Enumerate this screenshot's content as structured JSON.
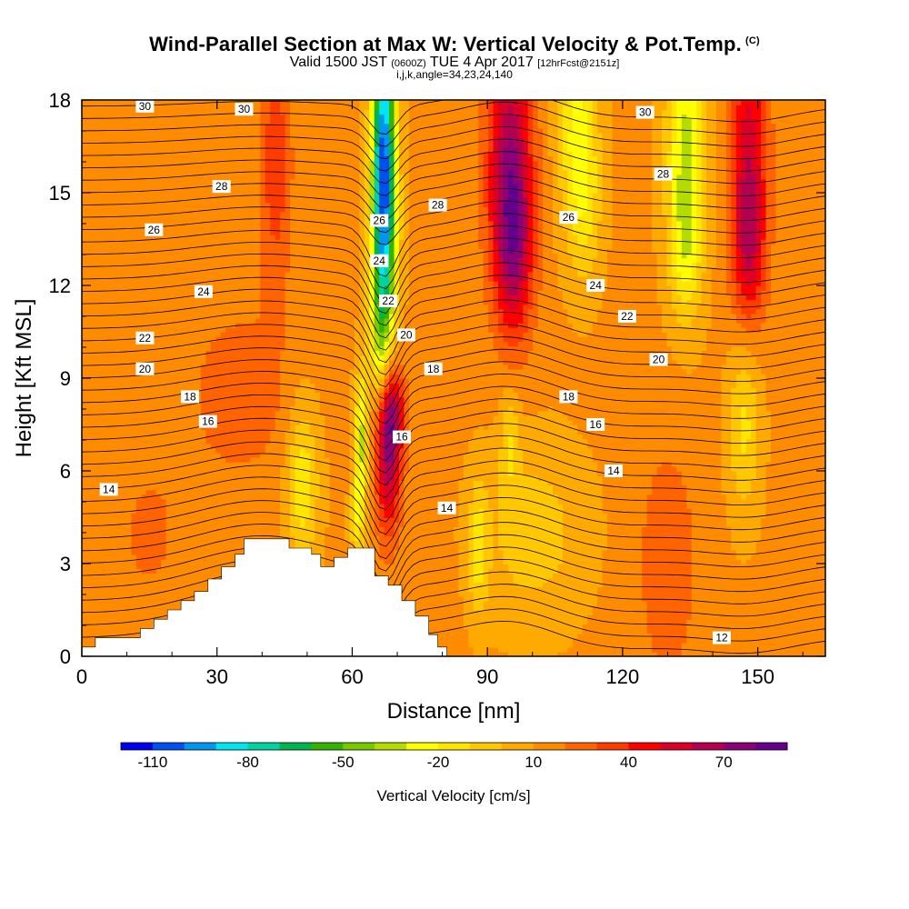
{
  "title": {
    "main": "Wind-Parallel Section at Max W: Vertical Velocity & Pot.Temp.",
    "copyright": "(C)",
    "valid_prefix": "Valid 1500 JST",
    "valid_utc": "(0600Z)",
    "valid_date": "TUE 4 Apr 2017",
    "forecast": "[12hrFcst@2151z]",
    "indices": "i,j,k,angle=34,23,24,140"
  },
  "chart_data": {
    "type": "heatmap",
    "xlabel": "Distance [nm]",
    "ylabel": "Height [Kft MSL]",
    "xlim": [
      0,
      165
    ],
    "ylim": [
      0,
      18
    ],
    "x_ticks": [
      0,
      30,
      60,
      90,
      120,
      150
    ],
    "y_ticks": [
      0,
      3,
      6,
      9,
      12,
      15,
      18
    ],
    "colorbar": {
      "label": "Vertical Velocity [cm/s]",
      "min": -120,
      "max": 80,
      "step": 10,
      "tick_labels": [
        "-110",
        "-80",
        "-50",
        "-20",
        "10",
        "40",
        "70"
      ],
      "tick_values": [
        -110,
        -80,
        -50,
        -20,
        10,
        40,
        70
      ],
      "colors": [
        "#0000f0",
        "#0050f0",
        "#0096f0",
        "#00e6f0",
        "#00d2a0",
        "#00b450",
        "#32b400",
        "#78c800",
        "#b4dc00",
        "#ffff00",
        "#ffe600",
        "#ffc800",
        "#ffaa00",
        "#ff8c00",
        "#ff6400",
        "#ff3c00",
        "#ff0000",
        "#dc0028",
        "#b40050",
        "#8c0078",
        "#64008c"
      ]
    },
    "vertical_velocity_features": [
      {
        "x": 67,
        "y": 16.5,
        "sx": 1.8,
        "sy": 3.2,
        "value": -105
      },
      {
        "x": 67,
        "y": 12.5,
        "sx": 2.0,
        "sy": 2.5,
        "value": -45
      },
      {
        "x": 66,
        "y": 10.0,
        "sx": 1.5,
        "sy": 1.5,
        "value": -20
      },
      {
        "x": 62,
        "y": 7.0,
        "sx": 1.0,
        "sy": 1.6,
        "value": -45
      },
      {
        "x": 61,
        "y": 4.5,
        "sx": 1.0,
        "sy": 1.0,
        "value": -25
      },
      {
        "x": 68,
        "y": 6.5,
        "sx": 2.0,
        "sy": 1.8,
        "value": 55
      },
      {
        "x": 69,
        "y": 8.0,
        "sx": 2.0,
        "sy": 1.0,
        "value": 35
      },
      {
        "x": 49,
        "y": 5.6,
        "sx": 2.5,
        "sy": 1.8,
        "value": -30
      },
      {
        "x": 95,
        "y": 16.0,
        "sx": 3.5,
        "sy": 3.0,
        "value": 55
      },
      {
        "x": 96,
        "y": 13.0,
        "sx": 3.0,
        "sy": 2.0,
        "value": 35
      },
      {
        "x": 110,
        "y": 17.0,
        "sx": 3.0,
        "sy": 2.5,
        "value": -35
      },
      {
        "x": 112,
        "y": 14.5,
        "sx": 2.5,
        "sy": 1.8,
        "value": -15
      },
      {
        "x": 134,
        "y": 16.5,
        "sx": 3.0,
        "sy": 3.0,
        "value": -45
      },
      {
        "x": 134,
        "y": 13.0,
        "sx": 2.5,
        "sy": 1.5,
        "value": -20
      },
      {
        "x": 148,
        "y": 16.0,
        "sx": 3.0,
        "sy": 3.0,
        "value": 45
      },
      {
        "x": 148,
        "y": 13.0,
        "sx": 2.5,
        "sy": 1.6,
        "value": 25
      },
      {
        "x": 147,
        "y": 7.5,
        "sx": 2.5,
        "sy": 2.0,
        "value": -25
      },
      {
        "x": 88,
        "y": 3.5,
        "sx": 1.5,
        "sy": 1.5,
        "value": -25
      },
      {
        "x": 95,
        "y": 7.0,
        "sx": 1.5,
        "sy": 1.2,
        "value": -20
      },
      {
        "x": 43,
        "y": 16.0,
        "sx": 2.5,
        "sy": 3.0,
        "value": 25
      },
      {
        "x": 35,
        "y": 8.5,
        "sx": 8.0,
        "sy": 2.0,
        "value": 15
      },
      {
        "x": 15,
        "y": 4.0,
        "sx": 6.0,
        "sy": 2.0,
        "value": 10
      },
      {
        "x": 130,
        "y": 3.0,
        "sx": 5.0,
        "sy": 3.0,
        "value": 15
      },
      {
        "x": 100,
        "y": 4.0,
        "sx": 8.0,
        "sy": 2.0,
        "value": -18
      }
    ],
    "theta_contour_labels": [
      {
        "x": 14,
        "y": 17.8,
        "text": "30"
      },
      {
        "x": 36,
        "y": 17.7,
        "text": "30"
      },
      {
        "x": 125,
        "y": 17.6,
        "text": "30"
      },
      {
        "x": 31,
        "y": 15.2,
        "text": "28"
      },
      {
        "x": 79,
        "y": 14.6,
        "text": "28"
      },
      {
        "x": 129,
        "y": 15.6,
        "text": "28"
      },
      {
        "x": 16,
        "y": 13.8,
        "text": "26"
      },
      {
        "x": 66,
        "y": 14.1,
        "text": "26"
      },
      {
        "x": 108,
        "y": 14.2,
        "text": "26"
      },
      {
        "x": 27,
        "y": 11.8,
        "text": "24"
      },
      {
        "x": 66,
        "y": 12.8,
        "text": "24"
      },
      {
        "x": 114,
        "y": 12.0,
        "text": "24"
      },
      {
        "x": 14,
        "y": 10.3,
        "text": "22"
      },
      {
        "x": 68,
        "y": 11.5,
        "text": "22"
      },
      {
        "x": 121,
        "y": 11.0,
        "text": "22"
      },
      {
        "x": 14,
        "y": 9.3,
        "text": "20"
      },
      {
        "x": 72,
        "y": 10.4,
        "text": "20"
      },
      {
        "x": 128,
        "y": 9.6,
        "text": "20"
      },
      {
        "x": 24,
        "y": 8.4,
        "text": "18"
      },
      {
        "x": 78,
        "y": 9.3,
        "text": "18"
      },
      {
        "x": 108,
        "y": 8.4,
        "text": "18"
      },
      {
        "x": 28,
        "y": 7.6,
        "text": "16"
      },
      {
        "x": 71,
        "y": 7.1,
        "text": "16"
      },
      {
        "x": 114,
        "y": 7.5,
        "text": "16"
      },
      {
        "x": 6,
        "y": 5.4,
        "text": "14"
      },
      {
        "x": 81,
        "y": 4.8,
        "text": "14"
      },
      {
        "x": 118,
        "y": 6.0,
        "text": "14"
      },
      {
        "x": 142,
        "y": 0.6,
        "text": "12"
      }
    ],
    "terrain_profile": [
      [
        0,
        0.3
      ],
      [
        3,
        0.3
      ],
      [
        3,
        0.6
      ],
      [
        13,
        0.6
      ],
      [
        13,
        0.9
      ],
      [
        16,
        0.9
      ],
      [
        16,
        1.2
      ],
      [
        19,
        1.2
      ],
      [
        19,
        1.5
      ],
      [
        22,
        1.5
      ],
      [
        22,
        1.8
      ],
      [
        25,
        1.8
      ],
      [
        25,
        2.1
      ],
      [
        28,
        2.1
      ],
      [
        28,
        2.5
      ],
      [
        31,
        2.5
      ],
      [
        31,
        2.9
      ],
      [
        34,
        2.9
      ],
      [
        34,
        3.3
      ],
      [
        36,
        3.3
      ],
      [
        36,
        3.8
      ],
      [
        46,
        3.8
      ],
      [
        46,
        3.5
      ],
      [
        51,
        3.5
      ],
      [
        51,
        3.3
      ],
      [
        53,
        3.3
      ],
      [
        53,
        2.9
      ],
      [
        56,
        2.9
      ],
      [
        56,
        3.2
      ],
      [
        59,
        3.2
      ],
      [
        59,
        3.5
      ],
      [
        65,
        3.5
      ],
      [
        65,
        2.6
      ],
      [
        68,
        2.6
      ],
      [
        68,
        2.3
      ],
      [
        71,
        2.3
      ],
      [
        71,
        1.8
      ],
      [
        74,
        1.8
      ],
      [
        74,
        1.3
      ],
      [
        77,
        1.3
      ],
      [
        77,
        0.7
      ],
      [
        79,
        0.7
      ],
      [
        79,
        0.3
      ],
      [
        81,
        0.3
      ],
      [
        81,
        0.0
      ]
    ]
  }
}
